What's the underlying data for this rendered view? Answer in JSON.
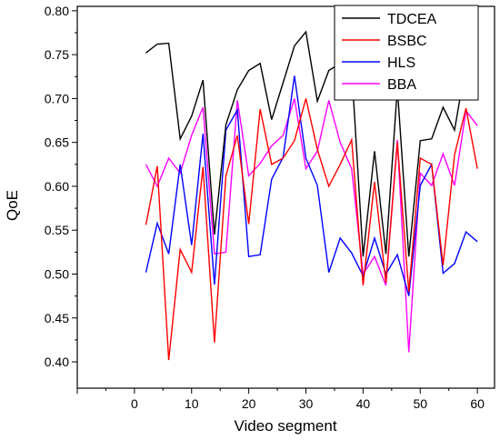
{
  "chart_data": {
    "type": "line",
    "title": "",
    "xlabel": "Video segment",
    "ylabel": "QoE",
    "xlim": [
      -10,
      63
    ],
    "ylim": [
      0.37,
      0.805
    ],
    "x_ticks": [
      0,
      10,
      20,
      30,
      40,
      50,
      60
    ],
    "y_ticks": [
      0.4,
      0.45,
      0.5,
      0.55,
      0.6,
      0.65,
      0.7,
      0.75,
      0.8
    ],
    "x_tick_labels": [
      "0",
      "10",
      "20",
      "30",
      "40",
      "50",
      "60"
    ],
    "y_tick_labels": [
      "0.40",
      "0.45",
      "0.50",
      "0.55",
      "0.60",
      "0.65",
      "0.70",
      "0.75",
      "0.80"
    ],
    "grid": false,
    "legend_position": "top-right",
    "x": [
      2,
      4,
      6,
      8,
      10,
      12,
      14,
      16,
      18,
      20,
      22,
      24,
      26,
      28,
      30,
      32,
      34,
      36,
      38,
      40,
      42,
      44,
      46,
      48,
      50,
      52,
      54,
      56,
      58,
      60
    ],
    "series": [
      {
        "name": "TDCEA",
        "color": "#000000",
        "values": [
          0.752,
          0.762,
          0.763,
          0.654,
          0.68,
          0.721,
          0.545,
          0.67,
          0.71,
          0.732,
          0.74,
          0.676,
          0.718,
          0.76,
          0.776,
          0.697,
          0.732,
          0.74,
          0.735,
          0.52,
          0.64,
          0.523,
          0.712,
          0.52,
          0.652,
          0.654,
          0.69,
          0.664,
          0.74,
          0.779
        ]
      },
      {
        "name": "BSBC",
        "color": "#ff0000",
        "values": [
          0.556,
          0.623,
          0.402,
          0.528,
          0.502,
          0.622,
          0.422,
          0.612,
          0.658,
          0.557,
          0.688,
          0.625,
          0.632,
          0.652,
          0.7,
          0.642,
          0.6,
          0.625,
          0.653,
          0.487,
          0.605,
          0.49,
          0.65,
          0.48,
          0.632,
          0.625,
          0.51,
          0.636,
          0.689,
          0.62
        ]
      },
      {
        "name": "HLS",
        "color": "#0000ff",
        "values": [
          0.502,
          0.558,
          0.523,
          0.625,
          0.533,
          0.66,
          0.488,
          0.664,
          0.687,
          0.52,
          0.522,
          0.608,
          0.633,
          0.726,
          0.632,
          0.601,
          0.502,
          0.541,
          0.524,
          0.498,
          0.541,
          0.5,
          0.522,
          0.475,
          0.601,
          0.625,
          0.501,
          0.512,
          0.548,
          0.537
        ]
      },
      {
        "name": "BBA",
        "color": "#ff00ff",
        "values": [
          0.625,
          0.6,
          0.632,
          0.615,
          0.658,
          0.69,
          0.523,
          0.525,
          0.698,
          0.612,
          0.626,
          0.646,
          0.658,
          0.7,
          0.62,
          0.64,
          0.698,
          0.65,
          0.62,
          0.5,
          0.52,
          0.487,
          0.653,
          0.411,
          0.615,
          0.601,
          0.637,
          0.601,
          0.686,
          0.669
        ]
      }
    ]
  }
}
